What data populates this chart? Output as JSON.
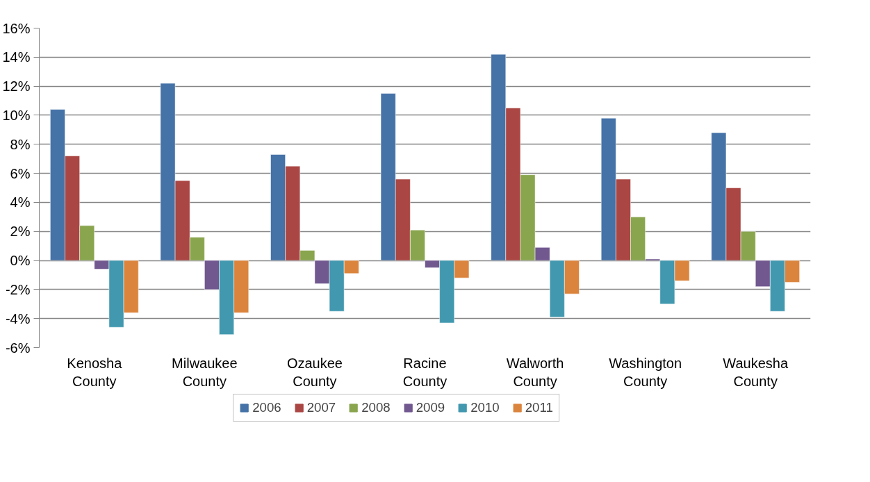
{
  "chart_data": {
    "type": "bar",
    "categories": [
      "Kenosha County",
      "Milwaukee County",
      "Ozaukee County",
      "Racine County",
      "Walworth County",
      "Washington County",
      "Waukesha County"
    ],
    "series": [
      {
        "name": "2006",
        "color": "#4572a7",
        "values": [
          10.4,
          12.2,
          7.3,
          11.5,
          14.2,
          9.8,
          8.8
        ]
      },
      {
        "name": "2007",
        "color": "#aa4643",
        "values": [
          7.2,
          5.5,
          6.5,
          5.6,
          10.5,
          5.6,
          5.0
        ]
      },
      {
        "name": "2008",
        "color": "#89a54e",
        "values": [
          2.4,
          1.6,
          0.7,
          2.1,
          5.9,
          3.0,
          2.0
        ]
      },
      {
        "name": "2009",
        "color": "#71588f",
        "values": [
          -0.6,
          -2.0,
          -1.6,
          -0.5,
          0.9,
          0.1,
          -1.8
        ]
      },
      {
        "name": "2010",
        "color": "#4198af",
        "values": [
          -4.6,
          -5.1,
          -3.5,
          -4.3,
          -3.9,
          -3.0,
          -3.5
        ]
      },
      {
        "name": "2011",
        "color": "#db843d",
        "values": [
          -3.6,
          -3.6,
          -0.9,
          -1.2,
          -2.3,
          -1.4,
          -1.5
        ]
      }
    ],
    "ylim": [
      -6,
      16
    ],
    "yticks": [
      {
        "value": -6,
        "label": "-6%"
      },
      {
        "value": -4,
        "label": "-4%"
      },
      {
        "value": -2,
        "label": "-2%"
      },
      {
        "value": 0,
        "label": "0%"
      },
      {
        "value": 2,
        "label": "2%"
      },
      {
        "value": 4,
        "label": "4%"
      },
      {
        "value": 6,
        "label": "6%"
      },
      {
        "value": 8,
        "label": "8%"
      },
      {
        "value": 10,
        "label": "10%"
      },
      {
        "value": 12,
        "label": "12%"
      },
      {
        "value": 14,
        "label": "14%"
      },
      {
        "value": 16,
        "label": "16%"
      }
    ],
    "grid": "y",
    "legend": "bottom"
  }
}
